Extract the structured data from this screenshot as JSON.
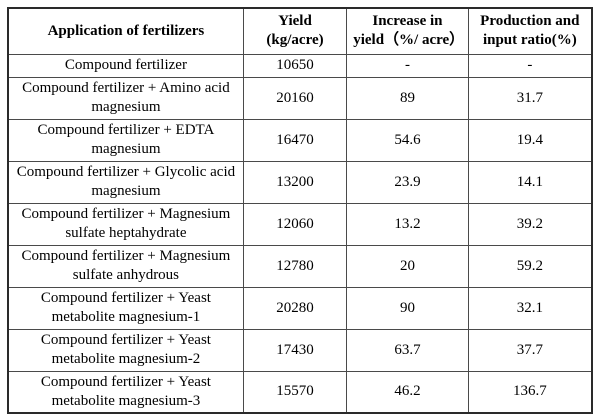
{
  "colors": {
    "background": "#ffffff",
    "text": "#000000",
    "grid_line": "#4a4a4a",
    "outer_border": "#2a2a2a"
  },
  "table": {
    "headers": {
      "application": "Application of fertilizers",
      "yield": "Yield\n(kg/acre)",
      "increase": "Increase in\nyield（%/ acre）",
      "ratio": "Production and\ninput ratio(%)"
    },
    "rows": [
      {
        "application": "Compound fertilizer",
        "yield": "10650",
        "increase": "-",
        "ratio": "-"
      },
      {
        "application": "Compound fertilizer + Amino acid magnesium",
        "yield": "20160",
        "increase": "89",
        "ratio": "31.7"
      },
      {
        "application": "Compound fertilizer + EDTA magnesium",
        "yield": "16470",
        "increase": "54.6",
        "ratio": "19.4"
      },
      {
        "application": "Compound fertilizer + Glycolic acid magnesium",
        "yield": "13200",
        "increase": "23.9",
        "ratio": "14.1"
      },
      {
        "application": "Compound fertilizer + Magnesium sulfate heptahydrate",
        "yield": "12060",
        "increase": "13.2",
        "ratio": "39.2"
      },
      {
        "application": "Compound fertilizer + Magnesium sulfate anhydrous",
        "yield": "12780",
        "increase": "20",
        "ratio": "59.2"
      },
      {
        "application": "Compound fertilizer + Yeast metabolite magnesium-1",
        "yield": "20280",
        "increase": "90",
        "ratio": "32.1"
      },
      {
        "application": "Compound fertilizer + Yeast metabolite magnesium-2",
        "yield": "17430",
        "increase": "63.7",
        "ratio": "37.7"
      },
      {
        "application": "Compound fertilizer + Yeast metabolite magnesium-3",
        "yield": "15570",
        "increase": "46.2",
        "ratio": "136.7"
      }
    ]
  }
}
